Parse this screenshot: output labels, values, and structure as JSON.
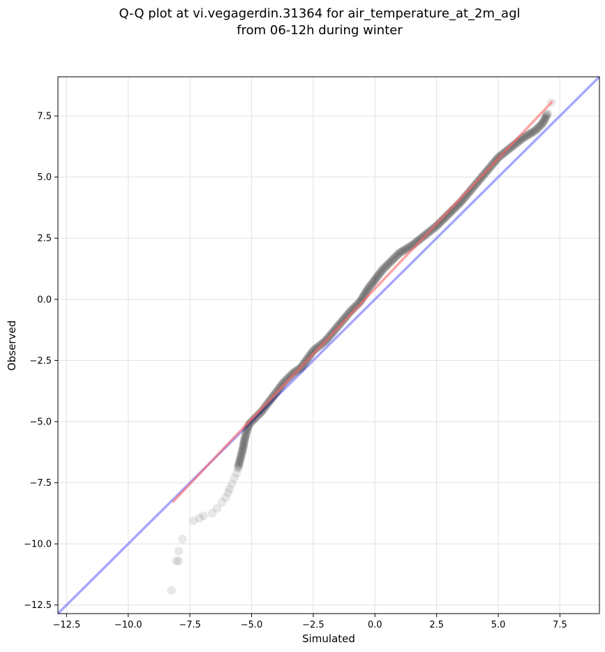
{
  "chart_data": {
    "type": "scatter",
    "title_line1": "Q-Q plot at vi.vegagerdin.31364 for air_temperature_at_2m_agl",
    "title_line2": "from 06-12h during winter",
    "xlabel": "Simulated",
    "ylabel": "Observed",
    "xlim": [
      -12.85,
      9.1
    ],
    "ylim": [
      -12.85,
      9.1
    ],
    "grid": true,
    "xticks": [
      -12.5,
      -10.0,
      -7.5,
      -5.0,
      -2.5,
      0.0,
      2.5,
      5.0,
      7.5
    ],
    "yticks": [
      -12.5,
      -10.0,
      -7.5,
      -5.0,
      -2.5,
      0.0,
      2.5,
      5.0,
      7.5
    ],
    "xtick_labels": [
      "−12.5",
      "−10.0",
      "−7.5",
      "−5.0",
      "−2.5",
      "0.0",
      "2.5",
      "5.0",
      "7.5"
    ],
    "ytick_labels": [
      "−12.5",
      "−10.0",
      "−7.5",
      "−5.0",
      "−2.5",
      "0.0",
      "2.5",
      "5.0",
      "7.5"
    ],
    "identity_line": {
      "x": [
        -12.85,
        9.1
      ],
      "y": [
        -12.85,
        9.1
      ],
      "color": "#7777ff"
    },
    "fit_line": {
      "x": [
        -8.2,
        7.2
      ],
      "y": [
        -8.3,
        8.1
      ],
      "color": "#ff6666"
    },
    "sparse_points": {
      "color": "#000000",
      "x": [
        -8.25,
        -8.05,
        -7.95,
        -7.95,
        -7.8,
        -7.35,
        -7.1,
        -6.95,
        -6.6,
        -6.4,
        -6.2,
        -6.05,
        -5.95,
        -5.9,
        -5.8,
        -5.7,
        -5.6
      ],
      "y": [
        -11.9,
        -10.7,
        -10.7,
        -10.3,
        -9.8,
        -9.05,
        -8.95,
        -8.85,
        -8.75,
        -8.55,
        -8.3,
        -8.1,
        -7.9,
        -7.75,
        -7.55,
        -7.3,
        -7.1
      ]
    },
    "dense_curve": {
      "color": "#000000",
      "x": [
        -5.55,
        -5.45,
        -5.35,
        -5.3,
        -5.2,
        -5.1,
        -4.9,
        -4.6,
        -4.3,
        -4.0,
        -3.7,
        -3.3,
        -3.0,
        -2.5,
        -2.0,
        -1.5,
        -1.0,
        -0.6,
        -0.3,
        0.0,
        0.3,
        0.7,
        1.0,
        1.5,
        2.0,
        2.5,
        3.0,
        3.5,
        4.0,
        4.5,
        5.0,
        5.5,
        6.0,
        6.5,
        6.8,
        7.0
      ],
      "y": [
        -6.9,
        -6.5,
        -6.1,
        -5.8,
        -5.4,
        -5.1,
        -4.9,
        -4.6,
        -4.2,
        -3.8,
        -3.4,
        -3.0,
        -2.8,
        -2.1,
        -1.7,
        -1.1,
        -0.5,
        -0.1,
        0.4,
        0.8,
        1.2,
        1.6,
        1.9,
        2.2,
        2.6,
        3.0,
        3.5,
        4.0,
        4.6,
        5.2,
        5.8,
        6.2,
        6.6,
        6.9,
        7.2,
        7.6
      ]
    },
    "outlier_point": {
      "x": 7.15,
      "y": 8.05
    }
  }
}
